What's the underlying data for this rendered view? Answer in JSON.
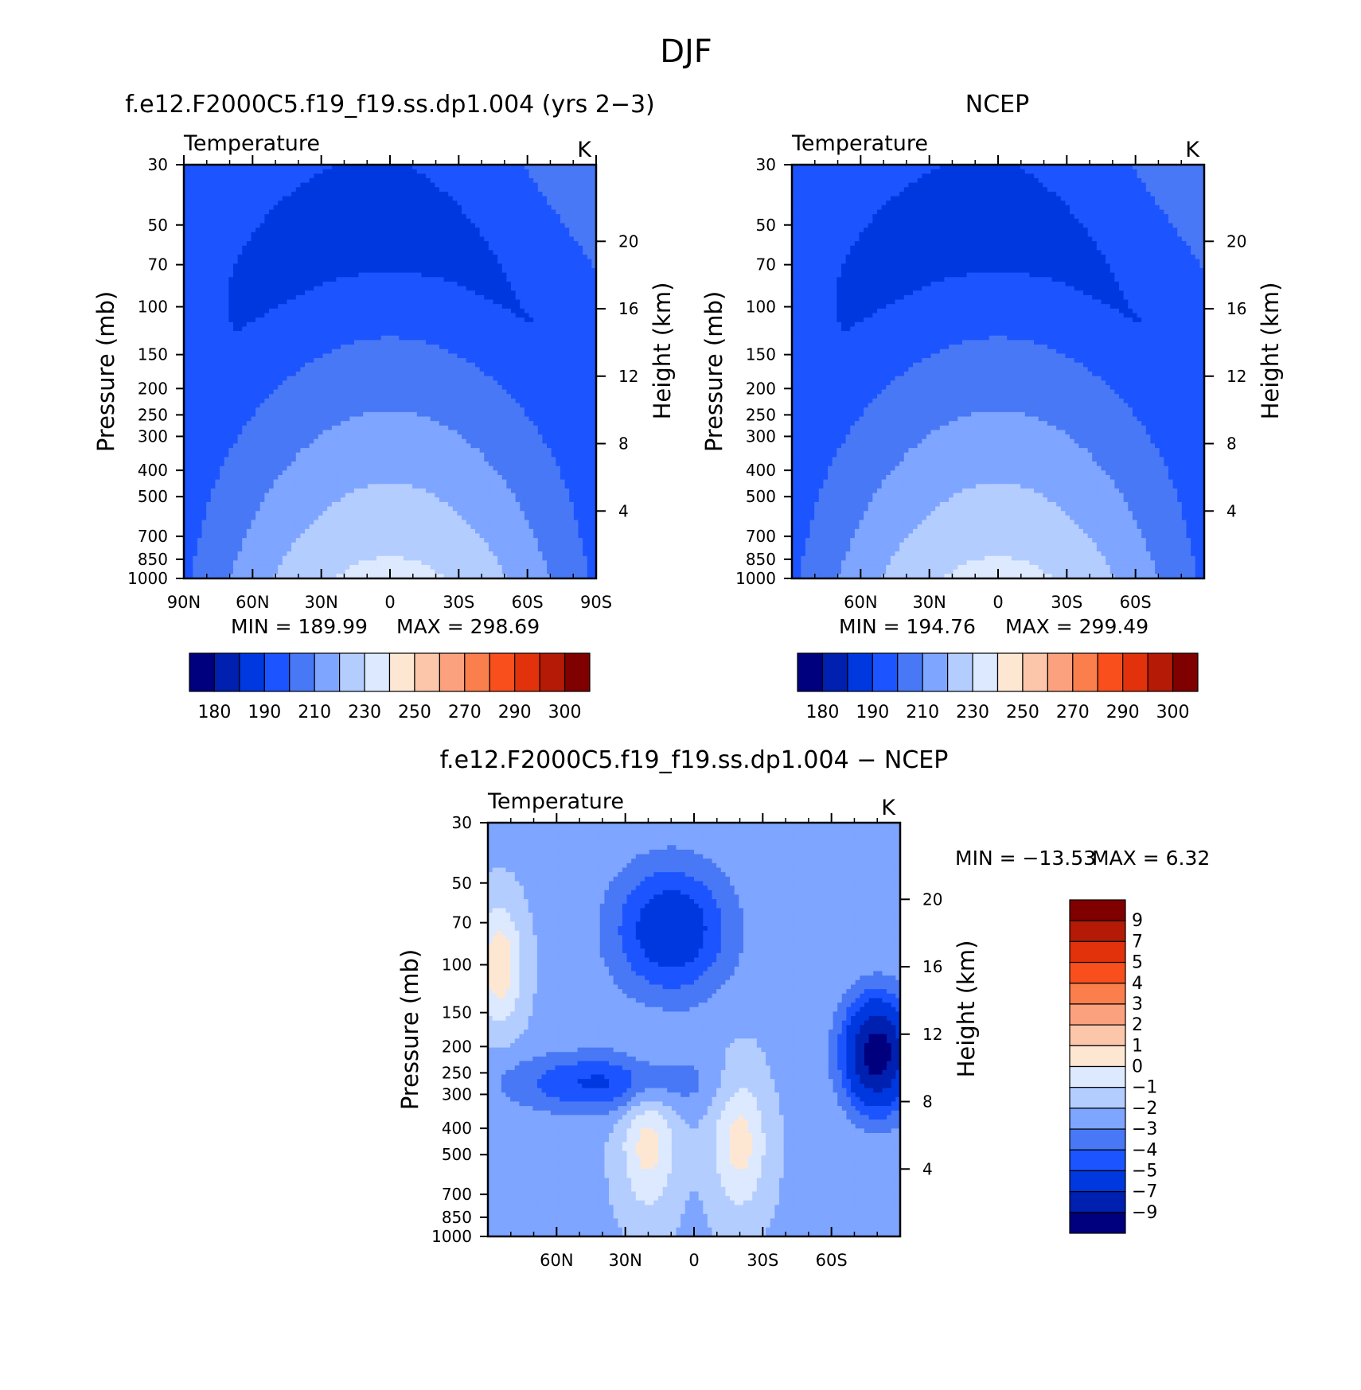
{
  "figure_title": "DJF",
  "chart_data": [
    {
      "type": "heatmap",
      "id": "model",
      "title": "f.e12.F2000C5.f19_f19.ss.dp1.004 (yrs 2−3)",
      "field_label": "Temperature",
      "units": "K",
      "ylabel": "Pressure (mb)",
      "y2label": "Height (km)",
      "x_ticks": [
        "90N",
        "60N",
        "30N",
        "0",
        "30S",
        "60S",
        "90S"
      ],
      "x_tick_values": [
        90,
        60,
        30,
        0,
        -30,
        -60,
        -90
      ],
      "xlim": [
        90,
        -90
      ],
      "y_ticks": [
        30,
        50,
        70,
        100,
        150,
        200,
        250,
        300,
        400,
        500,
        700,
        850,
        1000
      ],
      "ylim": [
        30,
        1000
      ],
      "y2_ticks": [
        20,
        16,
        12,
        8,
        4
      ],
      "min_label": "MIN = 189.99",
      "max_label": "MAX = 298.69",
      "min_value": 189.99,
      "max_value": 298.69,
      "colorbar": {
        "orientation": "horizontal",
        "levels": [
          180,
          190,
          210,
          230,
          250,
          270,
          290,
          300
        ],
        "tick_labels": [
          "180",
          "190",
          "210",
          "230",
          "250",
          "270",
          "290",
          "300"
        ],
        "colors": [
          "#00007f",
          "#0020b0",
          "#0038e0",
          "#1c54ff",
          "#4878f5",
          "#7ea5ff",
          "#b4cdff",
          "#dce9ff",
          "#fde7d3",
          "#fcc6aa",
          "#fca17e",
          "#fb7e4d",
          "#f94f1d",
          "#e1320b",
          "#b41a05",
          "#800000"
        ]
      },
      "field_model": "temperature"
    },
    {
      "type": "heatmap",
      "id": "ncep",
      "title": "NCEP",
      "field_label": "Temperature",
      "units": "K",
      "ylabel": "Pressure (mb)",
      "y2label": "Height (km)",
      "x_ticks": [
        "60N",
        "30N",
        "0",
        "30S",
        "60S"
      ],
      "x_tick_values": [
        60,
        30,
        0,
        -30,
        -60
      ],
      "xlim": [
        90,
        -90
      ],
      "y_ticks": [
        30,
        50,
        70,
        100,
        150,
        200,
        250,
        300,
        400,
        500,
        700,
        850,
        1000
      ],
      "ylim": [
        30,
        1000
      ],
      "y2_ticks": [
        20,
        16,
        12,
        8,
        4
      ],
      "min_label": "MIN = 194.76",
      "max_label": "MAX = 299.49",
      "min_value": 194.76,
      "max_value": 299.49,
      "colorbar": {
        "orientation": "horizontal",
        "levels": [
          180,
          190,
          210,
          230,
          250,
          270,
          290,
          300
        ],
        "tick_labels": [
          "180",
          "190",
          "210",
          "230",
          "250",
          "270",
          "290",
          "300"
        ],
        "colors": [
          "#00007f",
          "#0020b0",
          "#0038e0",
          "#1c54ff",
          "#4878f5",
          "#7ea5ff",
          "#b4cdff",
          "#dce9ff",
          "#fde7d3",
          "#fcc6aa",
          "#fca17e",
          "#fb7e4d",
          "#f94f1d",
          "#e1320b",
          "#b41a05",
          "#800000"
        ]
      },
      "field_model": "temperature"
    },
    {
      "type": "heatmap",
      "id": "difference",
      "title": "f.e12.F2000C5.f19_f19.ss.dp1.004 − NCEP",
      "field_label": "Temperature",
      "units": "K",
      "ylabel": "Pressure (mb)",
      "y2label": "Height (km)",
      "x_ticks": [
        "60N",
        "30N",
        "0",
        "30S",
        "60S"
      ],
      "x_tick_values": [
        60,
        30,
        0,
        -30,
        -60
      ],
      "xlim": [
        90,
        -90
      ],
      "y_ticks": [
        30,
        50,
        70,
        100,
        150,
        200,
        250,
        300,
        400,
        500,
        700,
        850,
        1000
      ],
      "ylim": [
        30,
        1000
      ],
      "y2_ticks": [
        20,
        16,
        12,
        8,
        4
      ],
      "min_label": "MIN = −13.53",
      "max_label": "MAX =    6.32",
      "min_value": -13.53,
      "max_value": 6.32,
      "colorbar": {
        "orientation": "vertical",
        "levels": [
          9,
          7,
          5,
          4,
          3,
          2,
          1,
          0,
          -1,
          -2,
          -3,
          -4,
          -5,
          -7,
          -9
        ],
        "tick_labels": [
          "9",
          "7",
          "5",
          "4",
          "3",
          "2",
          "1",
          "0",
          "−1",
          "−2",
          "−3",
          "−4",
          "−5",
          "−7",
          "−9"
        ],
        "colors": [
          "#800000",
          "#b41a05",
          "#e1320b",
          "#f94f1d",
          "#fb7e4d",
          "#fca17e",
          "#fcc6aa",
          "#fde7d3",
          "#dce9ff",
          "#b4cdff",
          "#7ea5ff",
          "#4878f5",
          "#1c54ff",
          "#0038e0",
          "#0020b0",
          "#00007f"
        ]
      },
      "field_model": "difference"
    }
  ]
}
